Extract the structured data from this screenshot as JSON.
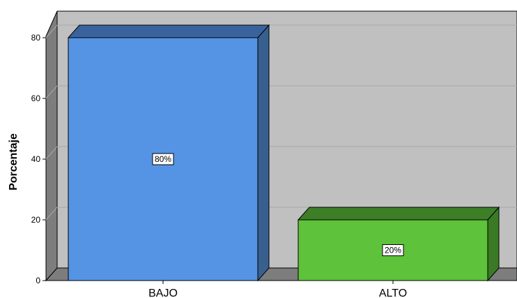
{
  "chart_data": {
    "type": "bar",
    "style": "3d",
    "categories": [
      "BAJO",
      "ALTO"
    ],
    "values": [
      80,
      20
    ],
    "data_labels": [
      "80%",
      "20%"
    ],
    "ylabel": "Porcentaje",
    "xlabel": "",
    "title": "",
    "ylim": [
      0,
      80
    ],
    "yticks": [
      "0",
      "20",
      "40",
      "60",
      "80"
    ],
    "grid": true,
    "colors": {
      "bars": [
        "#5594e4",
        "#5ec23a"
      ],
      "bar_tops": [
        "#3a639e",
        "#3d7f26"
      ],
      "bar_sides": [
        "#38608f",
        "#3a7a24"
      ],
      "back_wall": "#c0c0c0",
      "left_wall": "#7d7d7d",
      "floor": "#7d7d7d",
      "gridline": "#a9a9a9"
    }
  }
}
